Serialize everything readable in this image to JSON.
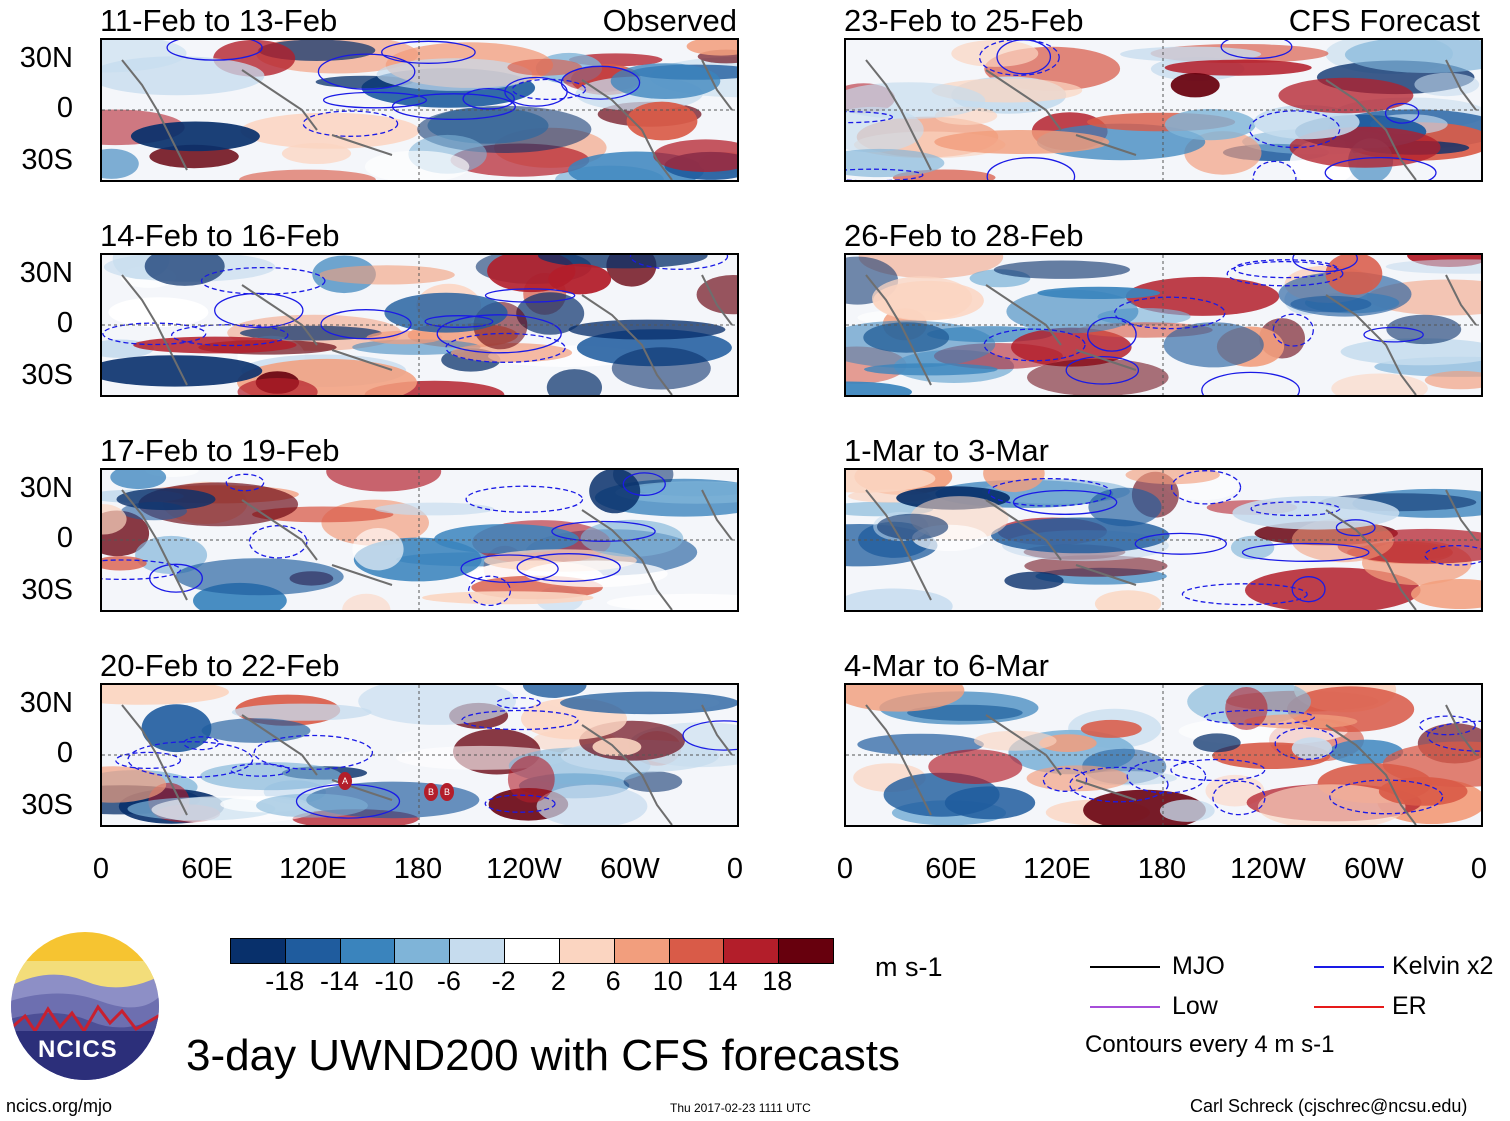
{
  "panels_left": [
    {
      "title": "11-Feb to 13-Feb",
      "tag": "Observed"
    },
    {
      "title": "14-Feb to 16-Feb",
      "tag": ""
    },
    {
      "title": "17-Feb to 19-Feb",
      "tag": ""
    },
    {
      "title": "20-Feb to 22-Feb",
      "tag": ""
    }
  ],
  "panels_right": [
    {
      "title": "23-Feb to 25-Feb",
      "tag": "CFS Forecast"
    },
    {
      "title": "26-Feb to 28-Feb",
      "tag": ""
    },
    {
      "title": "1-Mar to 3-Mar",
      "tag": ""
    },
    {
      "title": "4-Mar to 6-Mar",
      "tag": ""
    }
  ],
  "lat_labels": [
    "30N",
    "0",
    "30S"
  ],
  "lon_labels": [
    "0",
    "60E",
    "120E",
    "180",
    "120W",
    "60W",
    "0"
  ],
  "colorbar": {
    "colors": [
      "#08306b",
      "#1f5c9e",
      "#3a84bd",
      "#7fb4d8",
      "#c6dcee",
      "#ffffff",
      "#fbd5c1",
      "#f29e7d",
      "#d95b48",
      "#b31e2a",
      "#67000d"
    ],
    "ticks": [
      "-18",
      "-14",
      "-10",
      "-6",
      "-2",
      "2",
      "6",
      "10",
      "14",
      "18"
    ],
    "units": "m s-1"
  },
  "legend": {
    "mjo": "MJO",
    "kelvin": "Kelvin x2",
    "low": "Low",
    "er": "ER",
    "contours": "Contours every 4 m s-1",
    "colors": {
      "mjo": "#000000",
      "kelvin": "#1a1ae6",
      "low": "#a64dd9",
      "er": "#e61a1a"
    }
  },
  "title": "3-day UWND200 with CFS forecasts",
  "logo_text": "NCICS",
  "footer": {
    "url": "ncics.org/mjo",
    "timestamp": "Thu 2017-02-23 1111 UTC",
    "author": "Carl Schreck (cjschrec@ncsu.edu)"
  },
  "storm_markers": [
    "A",
    "B",
    "B"
  ]
}
